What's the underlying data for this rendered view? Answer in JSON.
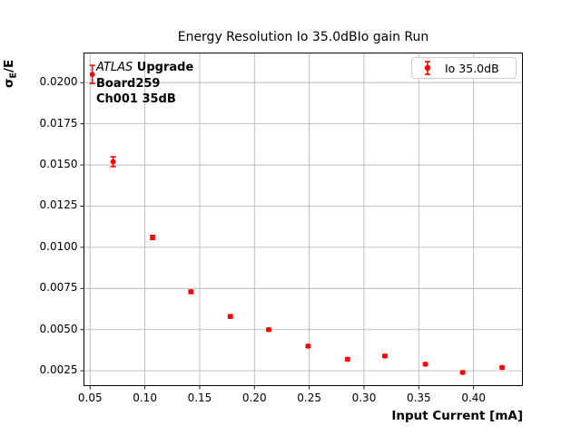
{
  "figure": {
    "title": "Energy Resolution Io 35.0dBIo gain Run",
    "background_color": "#ffffff"
  },
  "axes": {
    "xlabel": "Input Current [mA]",
    "ylabel_sigma": "σ",
    "ylabel_subscript": "E",
    "ylabel_rest": "/E"
  },
  "annotation": {
    "line1_italic": "ATLAS",
    "line1_bold": " Upgrade",
    "line2": "Board259",
    "line3": "Ch001 35dB"
  },
  "legend": {
    "label": "Io 35.0dB",
    "marker": "red-errorbar-dot-icon",
    "position": "upper right"
  },
  "chart_data": {
    "type": "scatter",
    "title": "Energy Resolution Io 35.0dBIo gain Run",
    "xlabel": "Input Current [mA]",
    "ylabel": "sigma_E/E",
    "grid": true,
    "grid_color": "#b0b0b0",
    "spine_color": "#000000",
    "xlim": [
      0.0444,
      0.4446
    ],
    "ylim": [
      0.0016,
      0.0218
    ],
    "x_ticks": [
      0.05,
      0.1,
      0.15,
      0.2,
      0.25,
      0.3,
      0.35,
      0.4
    ],
    "x_tick_labels": [
      "0.05",
      "0.10",
      "0.15",
      "0.20",
      "0.25",
      "0.30",
      "0.35",
      "0.40"
    ],
    "y_ticks": [
      0.0025,
      0.005,
      0.0075,
      0.01,
      0.0125,
      0.015,
      0.0175,
      0.02
    ],
    "y_tick_labels": [
      "0.0025",
      "0.0050",
      "0.0075",
      "0.0100",
      "0.0125",
      "0.0150",
      "0.0175",
      "0.0200"
    ],
    "legend_position": "upper right",
    "series": [
      {
        "name": "Io 35.0dB",
        "color": "#ff0000",
        "marker": "circle",
        "x": [
          0.052,
          0.071,
          0.107,
          0.142,
          0.178,
          0.213,
          0.249,
          0.285,
          0.319,
          0.356,
          0.39,
          0.426
        ],
        "y": [
          0.0205,
          0.0152,
          0.0106,
          0.0073,
          0.0058,
          0.005,
          0.004,
          0.0032,
          0.0034,
          0.0029,
          0.0024,
          0.0027
        ],
        "yerr": [
          0.00055,
          0.0003,
          0.00012,
          0.0001,
          0.0001,
          8e-05,
          8e-05,
          8e-05,
          8e-05,
          8e-05,
          8e-05,
          8e-05
        ]
      }
    ]
  }
}
